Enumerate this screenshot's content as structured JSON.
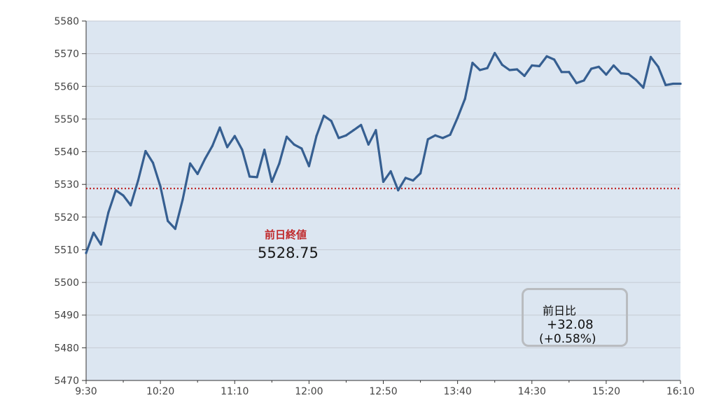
{
  "chart_data": {
    "type": "line",
    "x_ticks": [
      "9:30",
      "10:20",
      "11:10",
      "12:00",
      "12:50",
      "13:40",
      "14:30",
      "15:20",
      "16:10"
    ],
    "y_ticks": [
      "5580",
      "5570",
      "5560",
      "5550",
      "5540",
      "5530",
      "5520",
      "5510",
      "5500",
      "5490",
      "5480",
      "5470"
    ],
    "ylim": [
      5470,
      5580
    ],
    "x_minutes_range": [
      0,
      400
    ],
    "series": [
      {
        "color": "#365f91",
        "points": [
          {
            "x": 0,
            "y": 5509
          },
          {
            "x": 5,
            "y": 5515.2
          },
          {
            "x": 10,
            "y": 5511.6
          },
          {
            "x": 15,
            "y": 5521.4
          },
          {
            "x": 20,
            "y": 5528.2
          },
          {
            "x": 25,
            "y": 5526.6
          },
          {
            "x": 30,
            "y": 5523.6
          },
          {
            "x": 35,
            "y": 5531.2
          },
          {
            "x": 40,
            "y": 5540.2
          },
          {
            "x": 45,
            "y": 5536.6
          },
          {
            "x": 50,
            "y": 5529.4
          },
          {
            "x": 55,
            "y": 5518.8
          },
          {
            "x": 60,
            "y": 5516.4
          },
          {
            "x": 65,
            "y": 5525.4
          },
          {
            "x": 70,
            "y": 5536.4
          },
          {
            "x": 75,
            "y": 5533.2
          },
          {
            "x": 80,
            "y": 5537.8
          },
          {
            "x": 85,
            "y": 5541.8
          },
          {
            "x": 90,
            "y": 5547.4
          },
          {
            "x": 95,
            "y": 5541.4
          },
          {
            "x": 100,
            "y": 5544.8
          },
          {
            "x": 105,
            "y": 5540.6
          },
          {
            "x": 110,
            "y": 5532.4
          },
          {
            "x": 115,
            "y": 5532.2
          },
          {
            "x": 120,
            "y": 5540.6
          },
          {
            "x": 125,
            "y": 5530.8
          },
          {
            "x": 130,
            "y": 5536.4
          },
          {
            "x": 135,
            "y": 5544.6
          },
          {
            "x": 140,
            "y": 5542.2
          },
          {
            "x": 145,
            "y": 5541
          },
          {
            "x": 150,
            "y": 5535.6
          },
          {
            "x": 155,
            "y": 5544.8
          },
          {
            "x": 160,
            "y": 5551
          },
          {
            "x": 165,
            "y": 5549.4
          },
          {
            "x": 170,
            "y": 5544.2
          },
          {
            "x": 175,
            "y": 5545
          },
          {
            "x": 180,
            "y": 5546.6
          },
          {
            "x": 185,
            "y": 5548.2
          },
          {
            "x": 190,
            "y": 5542.2
          },
          {
            "x": 195,
            "y": 5546.6
          },
          {
            "x": 200,
            "y": 5530.8
          },
          {
            "x": 205,
            "y": 5534
          },
          {
            "x": 210,
            "y": 5528.2
          },
          {
            "x": 215,
            "y": 5532
          },
          {
            "x": 220,
            "y": 5531.2
          },
          {
            "x": 225,
            "y": 5533.4
          },
          {
            "x": 230,
            "y": 5543.8
          },
          {
            "x": 235,
            "y": 5545
          },
          {
            "x": 240,
            "y": 5544.2
          },
          {
            "x": 245,
            "y": 5545.2
          },
          {
            "x": 250,
            "y": 5550.4
          },
          {
            "x": 255,
            "y": 5556.2
          },
          {
            "x": 260,
            "y": 5567.2
          },
          {
            "x": 265,
            "y": 5565
          },
          {
            "x": 270,
            "y": 5565.6
          },
          {
            "x": 275,
            "y": 5570.2
          },
          {
            "x": 280,
            "y": 5566.6
          },
          {
            "x": 285,
            "y": 5565
          },
          {
            "x": 290,
            "y": 5565.2
          },
          {
            "x": 295,
            "y": 5563.2
          },
          {
            "x": 300,
            "y": 5566.4
          },
          {
            "x": 305,
            "y": 5566.2
          },
          {
            "x": 310,
            "y": 5569.2
          },
          {
            "x": 315,
            "y": 5568.2
          },
          {
            "x": 320,
            "y": 5564.4
          },
          {
            "x": 325,
            "y": 5564.4
          },
          {
            "x": 330,
            "y": 5561
          },
          {
            "x": 335,
            "y": 5561.8
          },
          {
            "x": 340,
            "y": 5565.4
          },
          {
            "x": 345,
            "y": 5566
          },
          {
            "x": 350,
            "y": 5563.6
          },
          {
            "x": 355,
            "y": 5566.4
          },
          {
            "x": 360,
            "y": 5564
          },
          {
            "x": 365,
            "y": 5563.8
          },
          {
            "x": 370,
            "y": 5562
          },
          {
            "x": 375,
            "y": 5559.6
          },
          {
            "x": 380,
            "y": 5569
          },
          {
            "x": 385,
            "y": 5566
          },
          {
            "x": 390,
            "y": 5560.4
          },
          {
            "x": 395,
            "y": 5560.8
          },
          {
            "x": 400,
            "y": 5560.8
          }
        ]
      }
    ],
    "reference_line": {
      "value": 5528.75,
      "color": "#c0282a",
      "style": "dotted"
    },
    "grid": true,
    "plot_background": "#dce6f1",
    "gridline_color": "#c5cbd3"
  },
  "annotations": {
    "prev_close_label": "前日終値",
    "prev_close_value": "5528.75",
    "prev_close_label_color": "#c0282a",
    "change_title": "前日比",
    "change_abs": "+32.08",
    "change_pct": "(+0.58%)"
  }
}
